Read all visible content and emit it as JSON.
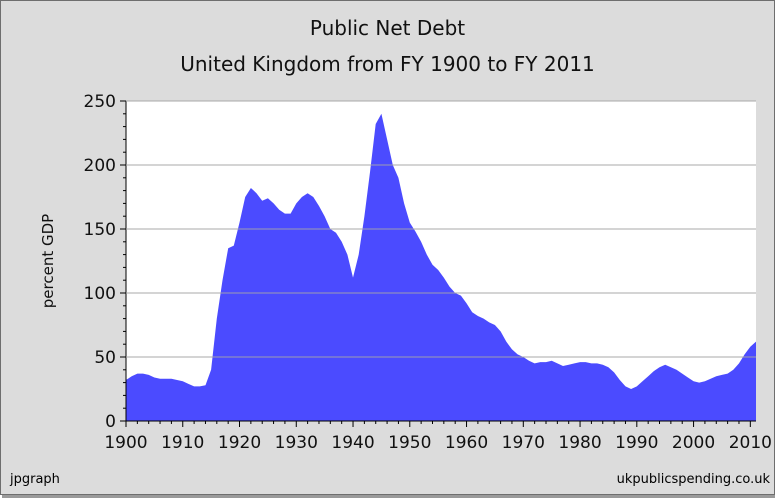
{
  "chart_data": {
    "type": "area",
    "title": "Public Net Debt",
    "subtitle": "United Kingdom from FY 1900 to FY 2011",
    "xlabel": "",
    "ylabel": "percent GDP",
    "xlim": [
      1900,
      2011
    ],
    "ylim": [
      0,
      250
    ],
    "x_ticks": [
      1900,
      1910,
      1920,
      1930,
      1940,
      1950,
      1960,
      1970,
      1980,
      1990,
      2000,
      2010
    ],
    "y_ticks": [
      0,
      50,
      100,
      150,
      200,
      250
    ],
    "grid": true,
    "color": "#4b4bff",
    "series": [
      {
        "x": [
          1900,
          1901,
          1902,
          1903,
          1904,
          1905,
          1906,
          1907,
          1908,
          1909,
          1910,
          1911,
          1912,
          1913,
          1914,
          1915,
          1916,
          1917,
          1918,
          1919,
          1920,
          1921,
          1922,
          1923,
          1924,
          1925,
          1926,
          1927,
          1928,
          1929,
          1930,
          1931,
          1932,
          1933,
          1934,
          1935,
          1936,
          1937,
          1938,
          1939,
          1940,
          1941,
          1942,
          1943,
          1944,
          1945,
          1946,
          1947,
          1948,
          1949,
          1950,
          1951,
          1952,
          1953,
          1954,
          1955,
          1956,
          1957,
          1958,
          1959,
          1960,
          1961,
          1962,
          1963,
          1964,
          1965,
          1966,
          1967,
          1968,
          1969,
          1970,
          1971,
          1972,
          1973,
          1974,
          1975,
          1976,
          1977,
          1978,
          1979,
          1980,
          1981,
          1982,
          1983,
          1984,
          1985,
          1986,
          1987,
          1988,
          1989,
          1990,
          1991,
          1992,
          1993,
          1994,
          1995,
          1996,
          1997,
          1998,
          1999,
          2000,
          2001,
          2002,
          2003,
          2004,
          2005,
          2006,
          2007,
          2008,
          2009,
          2010,
          2011
        ],
        "values": [
          32,
          35,
          37,
          37,
          36,
          34,
          33,
          33,
          33,
          32,
          31,
          29,
          27,
          27,
          28,
          40,
          80,
          110,
          135,
          137,
          155,
          175,
          182,
          178,
          172,
          174,
          170,
          165,
          162,
          162,
          170,
          175,
          178,
          175,
          168,
          160,
          150,
          147,
          140,
          130,
          112,
          130,
          160,
          195,
          232,
          240,
          220,
          200,
          190,
          170,
          155,
          148,
          140,
          130,
          122,
          118,
          112,
          105,
          100,
          98,
          92,
          85,
          82,
          80,
          77,
          75,
          70,
          62,
          56,
          52,
          50,
          47,
          45,
          46,
          46,
          47,
          45,
          43,
          44,
          45,
          46,
          46,
          45,
          45,
          44,
          42,
          38,
          32,
          27,
          25,
          27,
          31,
          35,
          39,
          42,
          44,
          42,
          40,
          37,
          34,
          31,
          30,
          31,
          33,
          35,
          36,
          37,
          40,
          45,
          52,
          58,
          62
        ]
      }
    ]
  },
  "credits": {
    "left": "jpgraph",
    "right": "ukpublicspending.co.uk"
  }
}
